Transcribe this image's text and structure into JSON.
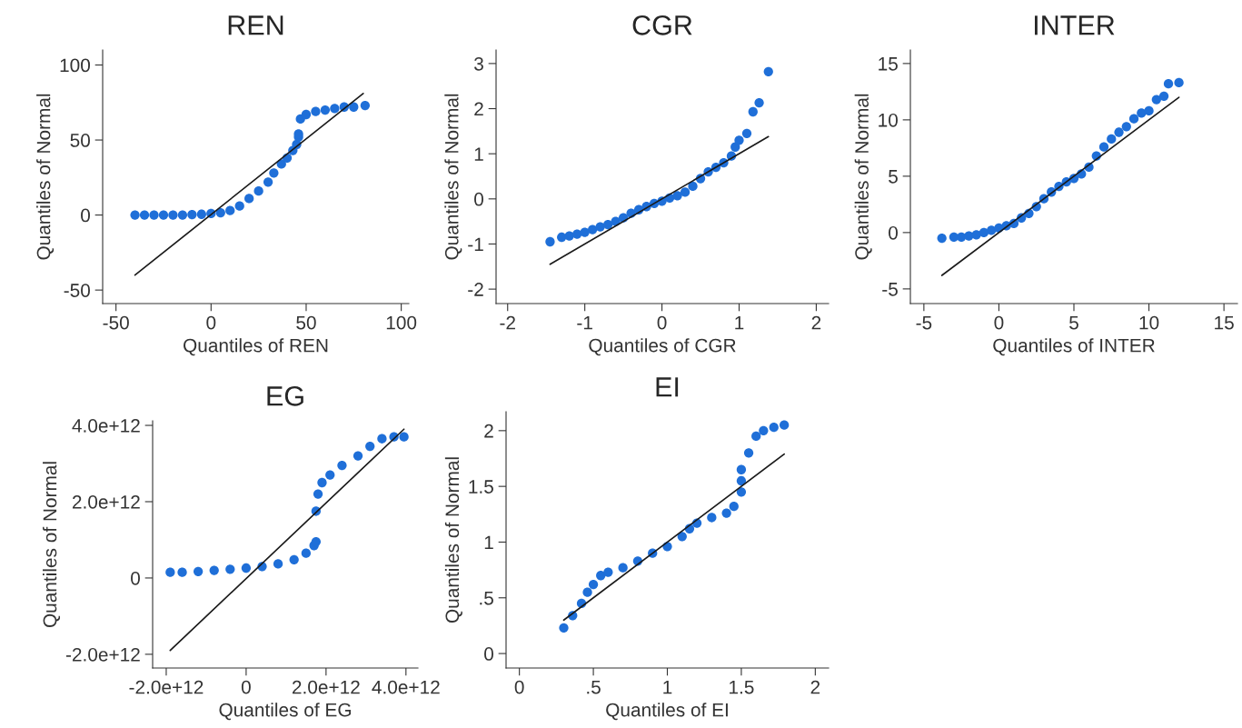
{
  "chart_data": [
    {
      "type": "scatter",
      "title": "REN",
      "xlabel": "Quantiles of REN",
      "ylabel": "Quantiles of Normal",
      "xlim": [
        -57,
        104
      ],
      "ylim": [
        -59,
        110
      ],
      "xticks": [
        -50,
        0,
        50,
        100
      ],
      "yticks": [
        -50,
        0,
        50,
        100
      ],
      "grid": false,
      "series": [
        {
          "marker": "circle",
          "color": "#1f6fd8",
          "x": [
            -40,
            -35,
            -30,
            -25,
            -20,
            -15,
            -10,
            -5,
            0,
            5,
            10,
            15,
            20,
            25,
            30,
            33,
            37,
            40,
            43,
            45,
            46,
            46,
            47,
            50,
            55,
            60,
            65,
            70,
            75,
            81
          ],
          "values": [
            0,
            0,
            0,
            0,
            0,
            0,
            0.3,
            0.5,
            1,
            1.5,
            3,
            6,
            11,
            16,
            22,
            28,
            34,
            38,
            43,
            47,
            52,
            54,
            64,
            67,
            69,
            70,
            71,
            72,
            72,
            73
          ]
        },
        {
          "type": "line",
          "marker": "none",
          "color": "#1a1a1a",
          "x": [
            -40,
            80
          ],
          "values": [
            -40,
            81
          ]
        }
      ]
    },
    {
      "type": "scatter",
      "title": "CGR",
      "xlabel": "Quantiles of CGR",
      "ylabel": "Quantiles of Normal",
      "xlim": [
        -2.15,
        2.16
      ],
      "ylim": [
        -2.32,
        3.3
      ],
      "xticks": [
        -2,
        -1,
        0,
        1,
        2
      ],
      "yticks": [
        -2,
        -1,
        0,
        1,
        2,
        3
      ],
      "grid": false,
      "series": [
        {
          "marker": "circle",
          "color": "#1f6fd8",
          "x": [
            -1.45,
            -1.3,
            -1.2,
            -1.1,
            -1.0,
            -0.9,
            -0.8,
            -0.7,
            -0.6,
            -0.5,
            -0.4,
            -0.3,
            -0.2,
            -0.1,
            0,
            0.1,
            0.2,
            0.3,
            0.4,
            0.5,
            0.6,
            0.7,
            0.8,
            0.9,
            0.95,
            1.0,
            1.1,
            1.18,
            1.26,
            1.38
          ],
          "values": [
            -0.95,
            -0.85,
            -0.82,
            -0.78,
            -0.74,
            -0.68,
            -0.62,
            -0.57,
            -0.5,
            -0.42,
            -0.32,
            -0.24,
            -0.17,
            -0.1,
            -0.05,
            0.02,
            0.07,
            0.15,
            0.28,
            0.45,
            0.6,
            0.7,
            0.8,
            0.95,
            1.15,
            1.3,
            1.45,
            1.93,
            2.13,
            2.82
          ]
        },
        {
          "type": "line",
          "marker": "none",
          "color": "#1a1a1a",
          "x": [
            -1.45,
            1.38
          ],
          "values": [
            -1.45,
            1.38
          ]
        }
      ]
    },
    {
      "type": "scatter",
      "title": "INTER",
      "xlabel": "Quantiles of INTER",
      "ylabel": "Quantiles of Normal",
      "xlim": [
        -5.9,
        15.9
      ],
      "ylim": [
        -6.3,
        16.2
      ],
      "xticks": [
        -5,
        0,
        5,
        10,
        15
      ],
      "yticks": [
        -5,
        0,
        5,
        10,
        15
      ],
      "grid": false,
      "series": [
        {
          "marker": "circle",
          "color": "#1f6fd8",
          "x": [
            -3.8,
            -3,
            -2.5,
            -2,
            -1.5,
            -1,
            -0.5,
            0,
            0.5,
            1,
            1.5,
            2,
            2.5,
            3,
            3.5,
            4,
            4.5,
            5,
            5.5,
            6,
            6.5,
            7,
            7.5,
            8,
            8.5,
            9,
            9.5,
            10,
            10.5,
            11,
            11.3,
            12
          ],
          "values": [
            -0.5,
            -0.4,
            -0.4,
            -0.3,
            -0.2,
            0,
            0.2,
            0.4,
            0.6,
            0.8,
            1.3,
            1.7,
            2.3,
            3,
            3.6,
            4.1,
            4.5,
            4.8,
            5.2,
            5.8,
            6.8,
            7.6,
            8.3,
            8.9,
            9.4,
            10.1,
            10.6,
            10.8,
            11.8,
            12.1,
            13.2,
            13.3
          ]
        },
        {
          "type": "line",
          "marker": "none",
          "color": "#1a1a1a",
          "x": [
            -3.8,
            12
          ],
          "values": [
            -3.8,
            12
          ]
        }
      ]
    },
    {
      "type": "scatter",
      "title": "EG",
      "xlabel": "Quantiles of EG",
      "ylabel": "Quantiles of Normal",
      "xlim": [
        -2340000000000.0,
        4300000000000.0
      ],
      "ylim": [
        -2360000000000.0,
        4120000000000.0
      ],
      "xticks": [
        {
          "value": -2000000000000.0,
          "label": "-2.0e+12"
        },
        0,
        {
          "value": 2000000000000.0,
          "label": "2.0e+12"
        },
        {
          "value": 4000000000000.0,
          "label": "4.0e+12"
        }
      ],
      "yticks": [
        {
          "value": -2000000000000.0,
          "label": "-2.0e+12"
        },
        0,
        {
          "value": 2000000000000.0,
          "label": "2.0e+12"
        },
        {
          "value": 4000000000000.0,
          "label": "4.0e+12"
        }
      ],
      "grid": false,
      "series": [
        {
          "marker": "circle",
          "color": "#1f6fd8",
          "x": [
            -1900000000000.0,
            -1600000000000.0,
            -1200000000000.0,
            -800000000000.0,
            -400000000000.0,
            0,
            400000000000.0,
            800000000000.0,
            1200000000000.0,
            1500000000000.0,
            1700000000000.0,
            1750000000000.0,
            1750000000000.0,
            1800000000000.0,
            1900000000000.0,
            2100000000000.0,
            2400000000000.0,
            2800000000000.0,
            3100000000000.0,
            3400000000000.0,
            3700000000000.0,
            3950000000000.0
          ],
          "values": [
            150000000000.0,
            150000000000.0,
            170000000000.0,
            200000000000.0,
            230000000000.0,
            260000000000.0,
            300000000000.0,
            370000000000.0,
            480000000000.0,
            650000000000.0,
            850000000000.0,
            950000000000.0,
            1750000000000.0,
            2200000000000.0,
            2500000000000.0,
            2700000000000.0,
            2950000000000.0,
            3200000000000.0,
            3450000000000.0,
            3650000000000.0,
            3700000000000.0,
            3700000000000.0
          ]
        },
        {
          "type": "line",
          "marker": "none",
          "color": "#1a1a1a",
          "x": [
            -1900000000000.0,
            3950000000000.0
          ],
          "values": [
            -1900000000000.0,
            3900000000000.0
          ]
        }
      ]
    },
    {
      "type": "scatter",
      "title": "EI",
      "xlabel": "Quantiles of EI",
      "ylabel": "Quantiles of Normal",
      "xlim": [
        -0.09,
        2.09
      ],
      "ylim": [
        -0.13,
        2.17
      ],
      "xticks": [
        0,
        {
          "value": 0.5,
          "label": ".5"
        },
        1,
        1.5,
        2
      ],
      "yticks": [
        0,
        {
          "value": 0.5,
          "label": ".5"
        },
        1,
        1.5,
        2
      ],
      "grid": false,
      "series": [
        {
          "marker": "circle",
          "color": "#1f6fd8",
          "x": [
            0.3,
            0.36,
            0.42,
            0.46,
            0.5,
            0.55,
            0.6,
            0.7,
            0.8,
            0.9,
            1.0,
            1.1,
            1.15,
            1.2,
            1.3,
            1.4,
            1.45,
            1.5,
            1.5,
            1.5,
            1.55,
            1.6,
            1.65,
            1.72,
            1.79
          ],
          "values": [
            0.23,
            0.34,
            0.45,
            0.55,
            0.62,
            0.7,
            0.73,
            0.77,
            0.83,
            0.9,
            0.96,
            1.05,
            1.12,
            1.17,
            1.22,
            1.26,
            1.32,
            1.45,
            1.55,
            1.65,
            1.8,
            1.95,
            2.0,
            2.03,
            2.05
          ]
        },
        {
          "type": "line",
          "marker": "none",
          "color": "#1a1a1a",
          "x": [
            0.3,
            1.79
          ],
          "values": [
            0.3,
            1.79
          ]
        }
      ]
    }
  ]
}
